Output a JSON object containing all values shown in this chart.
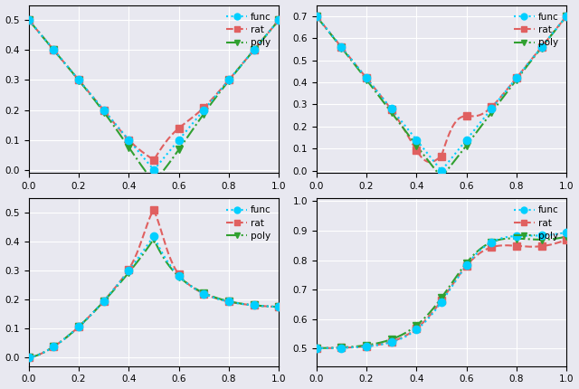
{
  "background_color": "#e8e8f0",
  "legend_labels": [
    "func",
    "rat",
    "poly"
  ],
  "func_color": "#00cfff",
  "rat_color": "#e06060",
  "poly_color": "#30a030",
  "func_linestyle": "dotted",
  "rat_linestyle": "dashed",
  "poly_linestyle": "dashdot",
  "func_marker": "o",
  "rat_marker": "s",
  "poly_marker": "v",
  "func_markersize": 6,
  "rat_markersize": 6,
  "poly_markersize": 6,
  "linewidth": 1.5,
  "subplots": [
    {
      "ylim": [
        -0.01,
        0.55
      ],
      "yticks": [
        0.0,
        0.1,
        0.2,
        0.3,
        0.4,
        0.5
      ]
    },
    {
      "ylim": [
        -0.01,
        0.75
      ],
      "yticks": [
        0.0,
        0.1,
        0.2,
        0.3,
        0.4,
        0.5,
        0.6,
        0.7
      ]
    },
    {
      "ylim": [
        -0.03,
        0.55
      ],
      "yticks": [
        0.0,
        0.1,
        0.2,
        0.3,
        0.4,
        0.5
      ]
    },
    {
      "ylim": [
        0.44,
        1.01
      ],
      "yticks": [
        0.5,
        0.6,
        0.7,
        0.8,
        0.9,
        1.0
      ]
    }
  ]
}
